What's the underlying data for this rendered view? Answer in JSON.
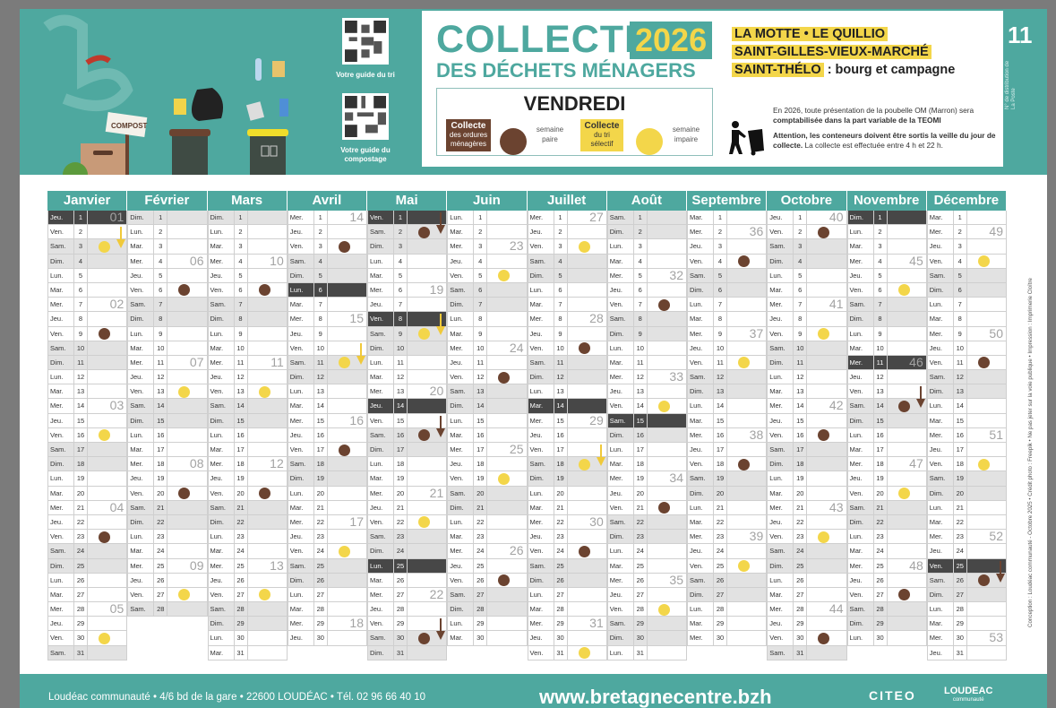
{
  "header": {
    "title": "COLLECTE",
    "year": "2026",
    "subtitle": "DES DÉCHETS MÉNAGERS",
    "day": "VENDREDI",
    "legend": {
      "om_title": "Collecte",
      "om_sub": "des ordures ménagères",
      "om_week": "semaine paire",
      "tri_title": "Collecte",
      "tri_sub": "du tri sélectif",
      "tri_week": "semaine impaire",
      "brown": "#6b4330",
      "yellow": "#f3d64a"
    },
    "towns": [
      "LA MOTTE • LE QUILLIO",
      "SAINT-GILLES-VIEUX-MARCHÉ",
      "SAINT-THÉLO"
    ],
    "towns_suffix": ": bourg et campagne",
    "info1_a": "En 2026, toute présentation de la poubelle OM (Marron) sera ",
    "info1_b": "comptabilisée dans la part variable de la TEOMI",
    "info2_a": "Attention, les conteneurs doivent être sortis la veille du jour de collecte.",
    "info2_b": " La collecte est effectuée entre 4 h et 22 h.",
    "distribution_number": "11",
    "distribution_label": "N° de distribution de La Poste",
    "qr1_label": "Votre guide du tri",
    "qr2_label": "Votre guide du compostage",
    "compost_sign": "COMPOST",
    "accent": "#4ea89f"
  },
  "calendar": {
    "months": [
      {
        "name": "Janvier",
        "dows": [
          "Jeu.",
          "Ven.",
          "Sam.",
          "Dim.",
          "Lun.",
          "Mar.",
          "Mer.",
          "Jeu.",
          "Ven.",
          "Sam.",
          "Dim.",
          "Lun.",
          "Mar.",
          "Mer.",
          "Jeu.",
          "Ven.",
          "Sam.",
          "Dim.",
          "Lun.",
          "Mar.",
          "Mer.",
          "Jeu.",
          "Ven.",
          "Sam.",
          "Dim.",
          "Lun.",
          "Mar.",
          "Mer.",
          "Jeu.",
          "Ven.",
          "Sam."
        ],
        "weeks": {
          "1": "01",
          "7": "02",
          "14": "03",
          "21": "04",
          "28": "05"
        },
        "brown": [
          9,
          23
        ],
        "yellow": [
          3,
          16,
          30
        ],
        "arrows": [
          {
            "day": 2,
            "color": "yellow"
          }
        ],
        "holidays": [
          1
        ]
      },
      {
        "name": "Février",
        "dows": [
          "Dim.",
          "Lun.",
          "Mar.",
          "Mer.",
          "Jeu.",
          "Ven.",
          "Sam.",
          "Dim.",
          "Lun.",
          "Mar.",
          "Mer.",
          "Jeu.",
          "Ven.",
          "Sam.",
          "Dim.",
          "Lun.",
          "Mar.",
          "Mer.",
          "Jeu.",
          "Ven.",
          "Sam.",
          "Dim.",
          "Lun.",
          "Mar.",
          "Mer.",
          "Jeu.",
          "Ven.",
          "Sam."
        ],
        "weeks": {
          "4": "06",
          "11": "07",
          "18": "08",
          "25": "09"
        },
        "brown": [
          6,
          20
        ],
        "yellow": [
          13,
          27
        ],
        "arrows": [],
        "holidays": []
      },
      {
        "name": "Mars",
        "dows": [
          "Dim.",
          "Lun.",
          "Mar.",
          "Mer.",
          "Jeu.",
          "Ven.",
          "Sam.",
          "Dim.",
          "Lun.",
          "Mar.",
          "Mer.",
          "Jeu.",
          "Ven.",
          "Sam.",
          "Dim.",
          "Lun.",
          "Mar.",
          "Mer.",
          "Jeu.",
          "Ven.",
          "Sam.",
          "Dim.",
          "Lun.",
          "Mar.",
          "Mer.",
          "Jeu.",
          "Ven.",
          "Sam.",
          "Dim.",
          "Lun.",
          "Mar."
        ],
        "weeks": {
          "4": "10",
          "11": "11",
          "18": "12",
          "25": "13"
        },
        "brown": [
          6,
          20
        ],
        "yellow": [
          13,
          27
        ],
        "arrows": [],
        "holidays": []
      },
      {
        "name": "Avril",
        "dows": [
          "Mer.",
          "Jeu.",
          "Ven.",
          "Sam.",
          "Dim.",
          "Lun.",
          "Mar.",
          "Mer.",
          "Jeu.",
          "Ven.",
          "Sam.",
          "Dim.",
          "Lun.",
          "Mar.",
          "Mer.",
          "Jeu.",
          "Ven.",
          "Sam.",
          "Dim.",
          "Lun.",
          "Mar.",
          "Mer.",
          "Jeu.",
          "Ven.",
          "Sam.",
          "Dim.",
          "Lun.",
          "Mar.",
          "Mer.",
          "Jeu."
        ],
        "weeks": {
          "1": "14",
          "8": "15",
          "15": "16",
          "22": "17",
          "29": "18"
        },
        "brown": [
          3,
          17
        ],
        "yellow": [
          11,
          24
        ],
        "arrows": [
          {
            "day": 10,
            "color": "yellow"
          }
        ],
        "holidays": [
          6
        ]
      },
      {
        "name": "Mai",
        "dows": [
          "Ven.",
          "Sam.",
          "Dim.",
          "Lun.",
          "Mar.",
          "Mer.",
          "Jeu.",
          "Ven.",
          "Sam.",
          "Dim.",
          "Lun.",
          "Mar.",
          "Mer.",
          "Jeu.",
          "Ven.",
          "Sam.",
          "Dim.",
          "Lun.",
          "Mar.",
          "Mer.",
          "Jeu.",
          "Ven.",
          "Sam.",
          "Dim.",
          "Lun.",
          "Mar.",
          "Mer.",
          "Jeu.",
          "Ven.",
          "Sam.",
          "Dim."
        ],
        "weeks": {
          "6": "19",
          "13": "20",
          "20": "21",
          "27": "22"
        },
        "brown": [
          2,
          16,
          30
        ],
        "yellow": [
          9,
          22
        ],
        "arrows": [
          {
            "day": 1,
            "color": "brown"
          },
          {
            "day": 8,
            "color": "yellow"
          },
          {
            "day": 15,
            "color": "brown"
          },
          {
            "day": 29,
            "color": "brown"
          }
        ],
        "holidays": [
          1,
          8,
          14,
          25
        ]
      },
      {
        "name": "Juin",
        "dows": [
          "Lun.",
          "Mar.",
          "Mer.",
          "Jeu.",
          "Ven.",
          "Sam.",
          "Dim.",
          "Lun.",
          "Mar.",
          "Mer.",
          "Jeu.",
          "Ven.",
          "Sam.",
          "Dim.",
          "Lun.",
          "Mar.",
          "Mer.",
          "Jeu.",
          "Ven.",
          "Sam.",
          "Dim.",
          "Lun.",
          "Mar.",
          "Mer.",
          "Jeu.",
          "Ven.",
          "Sam.",
          "Dim.",
          "Lun.",
          "Mar."
        ],
        "weeks": {
          "3": "23",
          "10": "24",
          "17": "25",
          "24": "26"
        },
        "brown": [
          12,
          26
        ],
        "yellow": [
          5,
          19
        ],
        "arrows": [],
        "holidays": []
      },
      {
        "name": "Juillet",
        "dows": [
          "Mer.",
          "Jeu.",
          "Ven.",
          "Sam.",
          "Dim.",
          "Lun.",
          "Mar.",
          "Mer.",
          "Jeu.",
          "Ven.",
          "Sam.",
          "Dim.",
          "Lun.",
          "Mar.",
          "Mer.",
          "Jeu.",
          "Ven.",
          "Sam.",
          "Dim.",
          "Lun.",
          "Mar.",
          "Mer.",
          "Jeu.",
          "Ven.",
          "Sam.",
          "Dim.",
          "Lun.",
          "Mar.",
          "Mer.",
          "Jeu.",
          "Ven."
        ],
        "weeks": {
          "1": "27",
          "8": "28",
          "15": "29",
          "22": "30",
          "29": "31"
        },
        "brown": [
          10,
          24
        ],
        "yellow": [
          3,
          18,
          31
        ],
        "arrows": [
          {
            "day": 17,
            "color": "yellow"
          }
        ],
        "holidays": [
          14
        ]
      },
      {
        "name": "Août",
        "dows": [
          "Sam.",
          "Dim.",
          "Lun.",
          "Mar.",
          "Mer.",
          "Jeu.",
          "Ven.",
          "Sam.",
          "Dim.",
          "Lun.",
          "Mar.",
          "Mer.",
          "Jeu.",
          "Ven.",
          "Sam.",
          "Dim.",
          "Lun.",
          "Mar.",
          "Mer.",
          "Jeu.",
          "Ven.",
          "Sam.",
          "Dim.",
          "Lun.",
          "Mar.",
          "Mer.",
          "Jeu.",
          "Ven.",
          "Sam.",
          "Dim.",
          "Lun."
        ],
        "weeks": {
          "5": "32",
          "12": "33",
          "19": "34",
          "26": "35"
        },
        "brown": [
          7,
          21
        ],
        "yellow": [
          14,
          28
        ],
        "arrows": [],
        "holidays": [
          15
        ]
      },
      {
        "name": "Septembre",
        "dows": [
          "Mar.",
          "Mer.",
          "Jeu.",
          "Ven.",
          "Sam.",
          "Dim.",
          "Lun.",
          "Mar.",
          "Mer.",
          "Jeu.",
          "Ven.",
          "Sam.",
          "Dim.",
          "Lun.",
          "Mar.",
          "Mer.",
          "Jeu.",
          "Ven.",
          "Sam.",
          "Dim.",
          "Lun.",
          "Mar.",
          "Mer.",
          "Jeu.",
          "Ven.",
          "Sam.",
          "Dim.",
          "Lun.",
          "Mar.",
          "Mer."
        ],
        "weeks": {
          "2": "36",
          "9": "37",
          "16": "38",
          "23": "39"
        },
        "brown": [
          4,
          18
        ],
        "yellow": [
          11,
          25
        ],
        "arrows": [],
        "holidays": []
      },
      {
        "name": "Octobre",
        "dows": [
          "Jeu.",
          "Ven.",
          "Sam.",
          "Dim.",
          "Lun.",
          "Mar.",
          "Mer.",
          "Jeu.",
          "Ven.",
          "Sam.",
          "Dim.",
          "Lun.",
          "Mar.",
          "Mer.",
          "Jeu.",
          "Ven.",
          "Sam.",
          "Dim.",
          "Lun.",
          "Mar.",
          "Mer.",
          "Jeu.",
          "Ven.",
          "Sam.",
          "Dim.",
          "Lun.",
          "Mar.",
          "Mer.",
          "Jeu.",
          "Ven.",
          "Sam."
        ],
        "weeks": {
          "1": "40",
          "7": "41",
          "14": "42",
          "21": "43",
          "28": "44"
        },
        "brown": [
          2,
          16,
          30
        ],
        "yellow": [
          9,
          23
        ],
        "arrows": [],
        "holidays": []
      },
      {
        "name": "Novembre",
        "dows": [
          "Dim.",
          "Lun.",
          "Mar.",
          "Mer.",
          "Jeu.",
          "Ven.",
          "Sam.",
          "Dim.",
          "Lun.",
          "Mar.",
          "Mer.",
          "Jeu.",
          "Ven.",
          "Sam.",
          "Dim.",
          "Lun.",
          "Mar.",
          "Mer.",
          "Jeu.",
          "Ven.",
          "Sam.",
          "Dim.",
          "Lun.",
          "Mar.",
          "Mer.",
          "Jeu.",
          "Ven.",
          "Sam.",
          "Dim.",
          "Lun."
        ],
        "weeks": {
          "4": "45",
          "11": "46",
          "18": "47",
          "25": "48"
        },
        "brown": [
          14,
          27
        ],
        "yellow": [
          6,
          20
        ],
        "arrows": [
          {
            "day": 13,
            "color": "brown"
          }
        ],
        "holidays": [
          1,
          11
        ]
      },
      {
        "name": "Décembre",
        "dows": [
          "Mar.",
          "Mer.",
          "Jeu.",
          "Ven.",
          "Sam.",
          "Dim.",
          "Lun.",
          "Mar.",
          "Mer.",
          "Jeu.",
          "Ven.",
          "Sam.",
          "Dim.",
          "Lun.",
          "Mar.",
          "Mer.",
          "Jeu.",
          "Ven.",
          "Sam.",
          "Dim.",
          "Lun.",
          "Mar.",
          "Mer.",
          "Jeu.",
          "Ven.",
          "Sam.",
          "Dim.",
          "Lun.",
          "Mar.",
          "Mer.",
          "Jeu."
        ],
        "weeks": {
          "2": "49",
          "9": "50",
          "16": "51",
          "23": "52",
          "30": "53"
        },
        "brown": [
          11,
          26
        ],
        "yellow": [
          4,
          18
        ],
        "arrows": [
          {
            "day": 25,
            "color": "brown"
          }
        ],
        "holidays": [
          25
        ]
      }
    ]
  },
  "credits": "Conception : Loudéac communauté - Octobre 2025 • Crédit photo : Freepik • Ne pas jeter sur la voie publique • Impression : Imprimerie Cloître",
  "footer": {
    "address": "Loudéac communauté • 4/6 bd de la gare • 22600 LOUDÉAC • Tél. 02 96 66 40 10",
    "website": "www.bretagnecentre.bzh",
    "citeo": "CITEO",
    "loudeac": "LOUDEAC",
    "loudeac_sub": "communauté"
  }
}
